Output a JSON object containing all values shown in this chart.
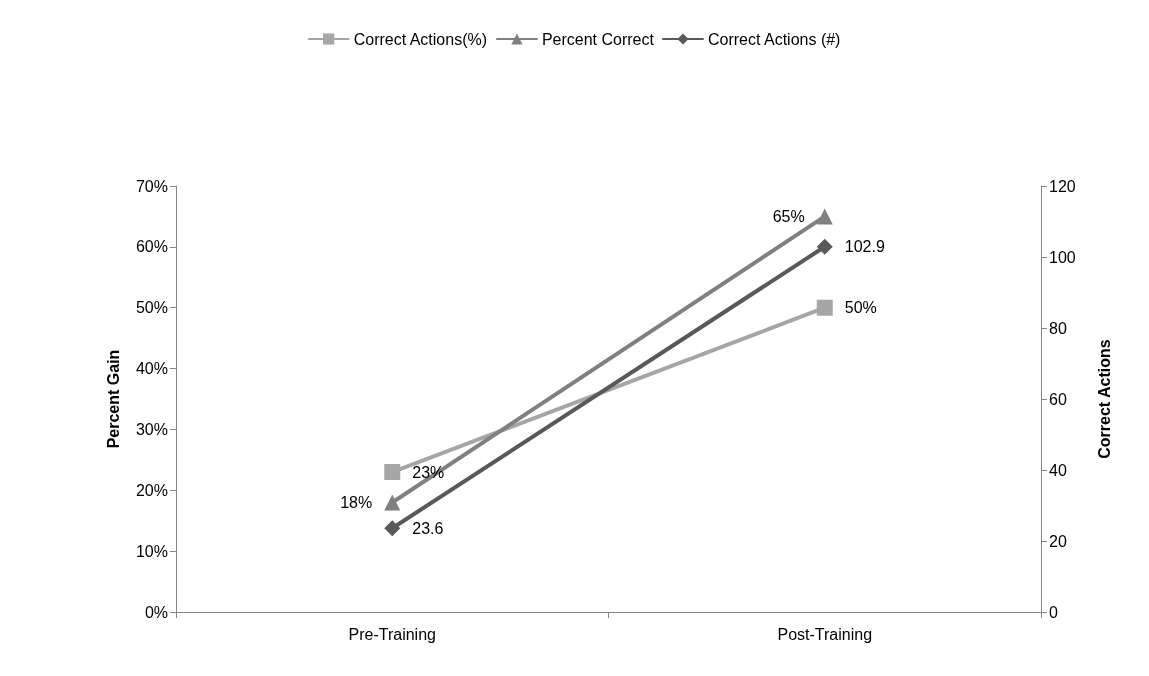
{
  "chart_data": {
    "type": "line",
    "categories": [
      "Pre-Training",
      "Post-Training"
    ],
    "ylabel": "Percent Gain",
    "y2label": "Correct Actions",
    "ylim": [
      0,
      70
    ],
    "yticks": [
      {
        "value": 0,
        "label": "0%"
      },
      {
        "value": 10,
        "label": "10%"
      },
      {
        "value": 20,
        "label": "20%"
      },
      {
        "value": 30,
        "label": "30%"
      },
      {
        "value": 40,
        "label": "40%"
      },
      {
        "value": 50,
        "label": "50%"
      },
      {
        "value": 60,
        "label": "60%"
      },
      {
        "value": 70,
        "label": "70%"
      }
    ],
    "y2lim": [
      0,
      120
    ],
    "y2ticks": [
      0,
      20,
      40,
      60,
      80,
      100,
      120
    ],
    "legend": "top",
    "grid": false,
    "line_style": "solid",
    "series": [
      {
        "name": "Correct Actions(%)",
        "color": "#a6a6a6",
        "marker": "square",
        "values": [
          23,
          50
        ],
        "value_labels": [
          "23%",
          "50%"
        ]
      },
      {
        "name": "Percent Correct",
        "color": "#808080",
        "marker": "triangle",
        "values": [
          18,
          65
        ],
        "value_labels": [
          "18%",
          "65%"
        ]
      },
      {
        "name": "Correct Actions (#)",
        "color": "#595959",
        "marker": "diamond",
        "axis": "y2",
        "values": [
          23.6,
          102.9
        ],
        "value_labels": [
          "23.6",
          "102.9"
        ]
      }
    ]
  }
}
